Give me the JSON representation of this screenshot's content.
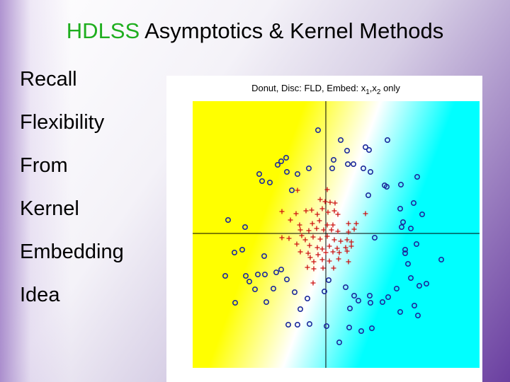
{
  "slide": {
    "title": [
      {
        "text": "HDLSS",
        "color": "#1fae1f"
      },
      {
        "text": " Asymptotics & Kernel Methods"
      }
    ],
    "bullets": [
      "Recall",
      "Flexibility",
      "From",
      "Kernel",
      "Embedding",
      "Idea"
    ]
  },
  "chart_data": {
    "type": "scatter",
    "title": [
      {
        "text": "Donut,   Disc: FLD,   Embed: x"
      },
      {
        "text": "1",
        "sub": true
      },
      {
        "text": ",x"
      },
      {
        "text": "2",
        "sub": true
      },
      {
        "text": " only"
      }
    ],
    "xlim": [
      -188,
      217
    ],
    "ylim": [
      -190,
      187
    ],
    "axes_through_origin": true,
    "series": [
      {
        "marker": "circle",
        "color": "#1c2a9c",
        "x": [
          -11,
          21,
          30,
          56,
          61,
          87,
          -56,
          -63,
          -68,
          11,
          9,
          31,
          39,
          53,
          63,
          -94,
          -90,
          -79,
          -55,
          -40,
          -24,
          -48,
          83,
          86,
          106,
          129,
          60,
          105,
          124,
          136,
          -138,
          -114,
          109,
          107,
          120,
          -129,
          -118,
          -87,
          69,
          112,
          112,
          128,
          163,
          116,
          120,
          132,
          142,
          -142,
          -113,
          -108,
          -96,
          -86,
          -70,
          -63,
          -55,
          -74,
          -100,
          -128,
          -84,
          -44,
          -26,
          -36,
          -2,
          4,
          28,
          40,
          46,
          62,
          63,
          34,
          80,
          88,
          100,
          105,
          125,
          130,
          -53,
          -40,
          -23,
          1,
          33,
          50,
          65,
          19
        ],
        "values": [
          146,
          132,
          117,
          122,
          118,
          132,
          107,
          102,
          97,
          104,
          92,
          98,
          98,
          92,
          87,
          84,
          74,
          72,
          87,
          84,
          92,
          61,
          68,
          66,
          69,
          80,
          54,
          35,
          43,
          27,
          19,
          9,
          16,
          9,
          7,
          -27,
          -23,
          -32,
          -6,
          -23,
          -28,
          -15,
          -37,
          -43,
          -63,
          -74,
          -71,
          -60,
          -60,
          -68,
          -58,
          -58,
          -55,
          -51,
          -65,
          -78,
          -79,
          -98,
          -97,
          -83,
          -92,
          -107,
          -82,
          -66,
          -76,
          -88,
          -95,
          -88,
          -98,
          -106,
          -97,
          -90,
          -78,
          -111,
          -102,
          -116,
          -129,
          -129,
          -128,
          -131,
          -133,
          -138,
          -134,
          -154
        ]
      },
      {
        "marker": "plus",
        "color": "#cc1111",
        "x": [
          2,
          -40,
          -8,
          -1,
          6,
          13,
          -62,
          -42,
          -28,
          -20,
          -12,
          -5,
          3,
          12,
          17,
          56,
          -50,
          -37,
          -19,
          -9,
          2,
          10,
          32,
          43,
          -36,
          -24,
          -13,
          -3,
          8,
          17,
          32,
          40,
          -62,
          -52,
          -34,
          -29,
          -18,
          -8,
          2,
          12,
          21,
          30,
          36,
          -41,
          -23,
          -12,
          -5,
          5,
          16,
          28,
          36,
          -36,
          -25,
          -11,
          0,
          10,
          19,
          30,
          -22,
          -17,
          -5,
          5,
          18,
          32,
          -26,
          -17,
          -4,
          11,
          -18
        ],
        "values": [
          62,
          61,
          48,
          45,
          44,
          43,
          31,
          28,
          32,
          33,
          27,
          35,
          30,
          32,
          27,
          28,
          19,
          12,
          14,
          18,
          12,
          12,
          14,
          14,
          5,
          4,
          7,
          5,
          5,
          3,
          2,
          6,
          -6,
          -7,
          -3,
          -9,
          -5,
          -8,
          -4,
          -9,
          -11,
          -9,
          -12,
          -15,
          -17,
          -20,
          -22,
          -18,
          -21,
          -20,
          -18,
          -26,
          -28,
          -30,
          -27,
          -26,
          -27,
          -25,
          -34,
          -40,
          -37,
          -39,
          -36,
          -40,
          -48,
          -50,
          -49,
          -49,
          -70
        ]
      }
    ]
  }
}
